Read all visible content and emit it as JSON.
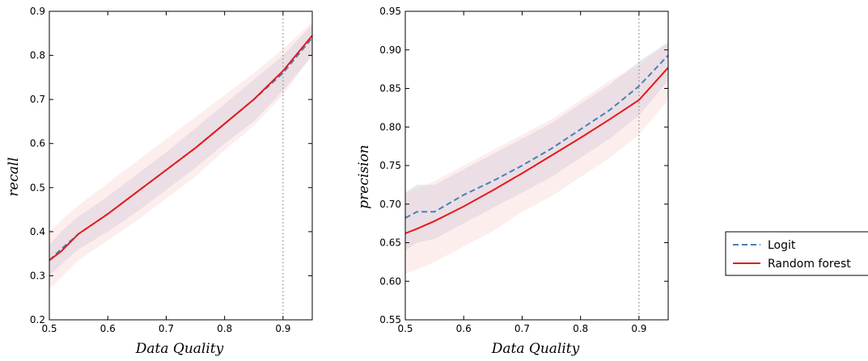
{
  "chart_data": [
    {
      "type": "line",
      "xlabel": "Data Quality",
      "ylabel": "recall",
      "xlim": [
        0.5,
        0.95
      ],
      "ylim": [
        0.2,
        0.9
      ],
      "xticks": [
        "0.5",
        "0.6",
        "0.7",
        "0.8",
        "0.9"
      ],
      "yticks": [
        "0.2",
        "0.3",
        "0.4",
        "0.5",
        "0.6",
        "0.7",
        "0.8",
        "0.9"
      ],
      "grid": false,
      "vline": 0.9,
      "x": [
        0.5,
        0.52,
        0.55,
        0.6,
        0.65,
        0.7,
        0.75,
        0.8,
        0.85,
        0.9,
        0.95
      ],
      "series": [
        {
          "name": "Logit",
          "color": "#4682b4",
          "style": "dashed",
          "values": [
            0.335,
            0.36,
            0.395,
            0.44,
            0.49,
            0.54,
            0.59,
            0.645,
            0.7,
            0.76,
            0.84
          ],
          "band": {
            "lower": [
              0.3,
              0.325,
              0.36,
              0.4,
              0.445,
              0.495,
              0.545,
              0.6,
              0.65,
              0.72,
              0.8
            ],
            "upper": [
              0.37,
              0.4,
              0.435,
              0.48,
              0.53,
              0.58,
              0.635,
              0.69,
              0.745,
              0.8,
              0.87
            ]
          }
        },
        {
          "name": "Random forest",
          "color": "#e41a1c",
          "style": "solid",
          "values": [
            0.335,
            0.355,
            0.395,
            0.44,
            0.49,
            0.54,
            0.59,
            0.645,
            0.7,
            0.765,
            0.845
          ],
          "band": {
            "lower": [
              0.27,
              0.295,
              0.335,
              0.38,
              0.425,
              0.475,
              0.525,
              0.585,
              0.64,
              0.71,
              0.8
            ],
            "upper": [
              0.4,
              0.425,
              0.46,
              0.51,
              0.56,
              0.61,
              0.66,
              0.71,
              0.76,
              0.815,
              0.875
            ]
          }
        }
      ]
    },
    {
      "type": "line",
      "xlabel": "Data Quality",
      "ylabel": "precision",
      "xlim": [
        0.5,
        0.95
      ],
      "ylim": [
        0.55,
        0.95
      ],
      "xticks": [
        "0.5",
        "0.6",
        "0.7",
        "0.8",
        "0.9"
      ],
      "yticks": [
        "0.55",
        "0.60",
        "0.65",
        "0.70",
        "0.75",
        "0.80",
        "0.85",
        "0.90",
        "0.95"
      ],
      "grid": false,
      "vline": 0.9,
      "legend": "outside-right",
      "x": [
        0.5,
        0.52,
        0.55,
        0.6,
        0.65,
        0.7,
        0.75,
        0.8,
        0.85,
        0.9,
        0.95
      ],
      "series": [
        {
          "name": "Logit",
          "color": "#4682b4",
          "style": "dashed",
          "values": [
            0.682,
            0.69,
            0.69,
            0.712,
            0.73,
            0.75,
            0.772,
            0.797,
            0.822,
            0.853,
            0.893
          ],
          "band": {
            "lower": [
              0.64,
              0.65,
              0.655,
              0.675,
              0.695,
              0.715,
              0.735,
              0.76,
              0.785,
              0.815,
              0.86
            ],
            "upper": [
              0.715,
              0.725,
              0.725,
              0.745,
              0.765,
              0.785,
              0.805,
              0.83,
              0.855,
              0.885,
              0.91
            ]
          }
        },
        {
          "name": "Random forest",
          "color": "#e41a1c",
          "style": "solid",
          "values": [
            0.662,
            0.668,
            0.678,
            0.697,
            0.718,
            0.74,
            0.763,
            0.786,
            0.81,
            0.835,
            0.877
          ],
          "band": {
            "lower": [
              0.61,
              0.615,
              0.625,
              0.645,
              0.665,
              0.69,
              0.71,
              0.735,
              0.76,
              0.79,
              0.835
            ],
            "upper": [
              0.715,
              0.72,
              0.73,
              0.75,
              0.77,
              0.79,
              0.81,
              0.835,
              0.86,
              0.88,
              0.91
            ]
          }
        }
      ]
    }
  ],
  "legend": {
    "items": [
      {
        "label": "Logit",
        "color": "#4682b4",
        "style": "dashed"
      },
      {
        "label": "Random forest",
        "color": "#e41a1c",
        "style": "solid"
      }
    ]
  },
  "colors": {
    "band_logit": "#b7bdd8",
    "band_rf": "#f8c7c7",
    "vline": "#888888"
  }
}
